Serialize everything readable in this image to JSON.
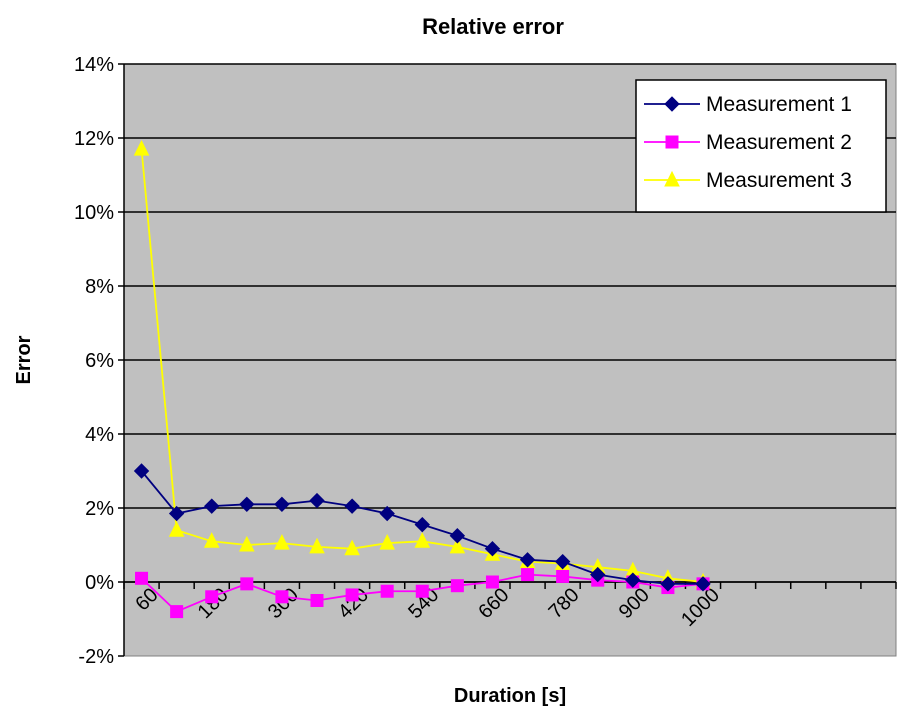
{
  "chart_data": {
    "type": "line",
    "title": "Relative error",
    "xlabel": "Duration [s]",
    "ylabel": "Error",
    "y_ticks": [
      "-2%",
      "0%",
      "2%",
      "4%",
      "6%",
      "8%",
      "10%",
      "12%",
      "14%"
    ],
    "ylim": [
      -2,
      14
    ],
    "x_tick_labels": [
      "60",
      "180",
      "300",
      "420",
      "540",
      "660",
      "780",
      "900",
      "1000"
    ],
    "x": [
      60,
      120,
      180,
      240,
      300,
      360,
      420,
      480,
      540,
      600,
      660,
      720,
      780,
      840,
      900,
      960,
      1000
    ],
    "series": [
      {
        "name": "Measurement 1",
        "color": "#000080",
        "marker": "diamond",
        "values": [
          3.0,
          1.85,
          2.05,
          2.1,
          2.1,
          2.2,
          2.05,
          1.85,
          1.55,
          1.25,
          0.9,
          0.6,
          0.55,
          0.2,
          0.05,
          -0.05,
          -0.05
        ]
      },
      {
        "name": "Measurement 2",
        "color": "#FF00FF",
        "marker": "square",
        "values": [
          0.1,
          -0.8,
          -0.4,
          -0.05,
          -0.4,
          -0.5,
          -0.35,
          -0.25,
          -0.25,
          -0.1,
          0.0,
          0.2,
          0.15,
          0.05,
          0.0,
          -0.15,
          -0.05
        ]
      },
      {
        "name": "Measurement 3",
        "color": "#FFFF00",
        "marker": "triangle",
        "values": [
          11.7,
          1.4,
          1.1,
          1.0,
          1.05,
          0.95,
          0.9,
          1.05,
          1.1,
          0.95,
          0.75,
          0.55,
          0.5,
          0.4,
          0.3,
          0.1,
          0.0
        ]
      }
    ],
    "grid": "horizontal",
    "plot_background": "#C0C0C0",
    "legend_position": "top-right"
  }
}
